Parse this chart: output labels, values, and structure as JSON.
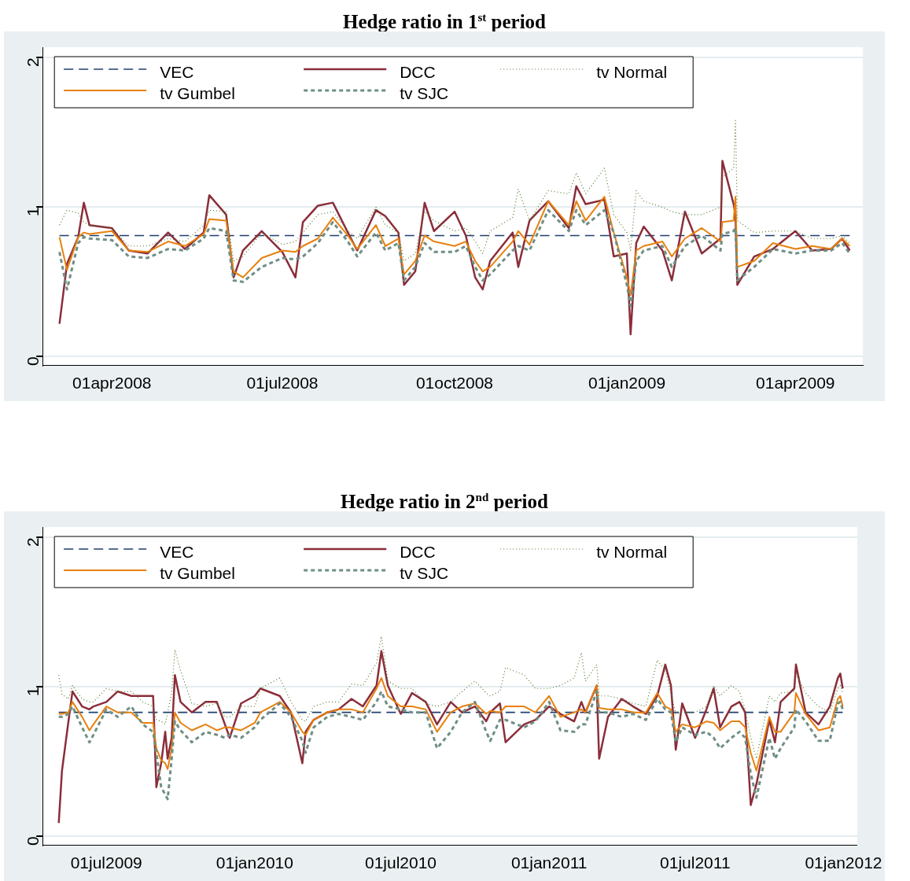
{
  "chart_data": [
    {
      "type": "line",
      "title": "Hedge ratio in 1$^{st}$ period",
      "legend": "top left",
      "grid": "y",
      "x": [
        "2008-03-04",
        "2008-03-08",
        "2008-03-14",
        "2008-03-17",
        "2008-03-20",
        "2008-04-01",
        "2008-04-10",
        "2008-04-20",
        "2008-05-01",
        "2008-05-10",
        "2008-05-20",
        "2008-05-23",
        "2008-06-01",
        "2008-06-05",
        "2008-06-10",
        "2008-06-20",
        "2008-07-01",
        "2008-07-08",
        "2008-07-12",
        "2008-07-20",
        "2008-07-28",
        "2008-08-05",
        "2008-08-10",
        "2008-08-20",
        "2008-08-25",
        "2008-09-01",
        "2008-09-04",
        "2008-09-10",
        "2008-09-15",
        "2008-09-20",
        "2008-10-01",
        "2008-10-07",
        "2008-10-12",
        "2008-10-16",
        "2008-10-20",
        "2008-11-01",
        "2008-11-04",
        "2008-11-10",
        "2008-11-20",
        "2008-12-01",
        "2008-12-05",
        "2008-12-10",
        "2008-12-20",
        "2008-12-25",
        "2009-01-01",
        "2009-01-03",
        "2009-01-06",
        "2009-01-10",
        "2009-01-20",
        "2009-01-25",
        "2009-02-01",
        "2009-02-10",
        "2009-02-20",
        "2009-02-21",
        "2009-02-27",
        "2009-02-28",
        "2009-03-01",
        "2009-03-10",
        "2009-03-20",
        "2009-04-01",
        "2009-04-10",
        "2009-04-20",
        "2009-04-26",
        "2009-04-30"
      ],
      "series": [
        {
          "name": "VEC",
          "color": "#1f3f6e",
          "line_style": "dashed",
          "x": [
            "2008-03-04",
            "2009-04-30"
          ],
          "values": [
            0.81,
            0.81
          ]
        },
        {
          "name": "DCC",
          "color": "#8b2e3a",
          "line_style": "solid",
          "values": [
            0.22,
            0.62,
            0.8,
            1.03,
            0.88,
            0.86,
            0.71,
            0.69,
            0.83,
            0.72,
            0.83,
            1.08,
            0.95,
            0.53,
            0.71,
            0.84,
            0.7,
            0.53,
            0.9,
            1.01,
            1.03,
            0.83,
            0.71,
            0.98,
            0.94,
            0.83,
            0.48,
            0.57,
            1.03,
            0.84,
            0.97,
            0.81,
            0.53,
            0.45,
            0.64,
            0.83,
            0.6,
            0.91,
            1.04,
            0.86,
            1.14,
            1.02,
            1.05,
            0.67,
            0.69,
            0.15,
            0.76,
            0.87,
            0.71,
            0.51,
            0.97,
            0.69,
            0.79,
            1.31,
            1.02,
            0.95,
            0.48,
            0.67,
            0.72,
            0.84,
            0.71,
            0.72,
            0.79,
            0.71
          ]
        },
        {
          "name": "tv Normal",
          "color": "#4f7a28",
          "line_style": "dotted",
          "values": [
            0.88,
            0.98,
            0.96,
            0.9,
            0.88,
            0.86,
            0.74,
            0.74,
            0.79,
            0.77,
            0.88,
            0.98,
            0.97,
            0.64,
            0.67,
            0.83,
            0.75,
            0.77,
            0.83,
            0.95,
            0.97,
            0.84,
            0.79,
            1.0,
            0.88,
            0.83,
            0.64,
            0.69,
            0.97,
            0.91,
            0.84,
            0.86,
            0.77,
            0.69,
            0.84,
            0.93,
            1.12,
            0.91,
            1.11,
            1.09,
            1.23,
            1.09,
            1.26,
            0.95,
            0.83,
            0.71,
            1.11,
            1.04,
            1.0,
            0.97,
            0.95,
            0.95,
            1.0,
            1.2,
            1.26,
            1.58,
            0.91,
            0.83,
            0.84,
            0.84,
            0.79,
            0.79,
            0.81,
            0.76
          ]
        },
        {
          "name": "tv Gumbel",
          "color": "#e8800e",
          "line_style": "solid",
          "values": [
            0.8,
            0.58,
            0.8,
            0.83,
            0.82,
            0.84,
            0.71,
            0.7,
            0.77,
            0.74,
            0.82,
            0.92,
            0.91,
            0.57,
            0.53,
            0.66,
            0.71,
            0.7,
            0.74,
            0.79,
            0.93,
            0.81,
            0.72,
            0.88,
            0.74,
            0.79,
            0.55,
            0.64,
            0.81,
            0.77,
            0.74,
            0.77,
            0.64,
            0.57,
            0.6,
            0.77,
            0.84,
            0.75,
            1.04,
            0.88,
            1.04,
            0.91,
            1.07,
            0.83,
            0.53,
            0.41,
            0.71,
            0.74,
            0.77,
            0.67,
            0.79,
            0.86,
            0.77,
            0.9,
            0.91,
            1.07,
            0.6,
            0.64,
            0.76,
            0.72,
            0.74,
            0.72,
            0.79,
            0.74
          ]
        },
        {
          "name": "tv SJC",
          "color": "#6f8f84",
          "line_style": "dashed",
          "values": [
            0.7,
            0.45,
            0.76,
            0.8,
            0.79,
            0.78,
            0.67,
            0.66,
            0.72,
            0.71,
            0.79,
            0.86,
            0.84,
            0.51,
            0.5,
            0.6,
            0.66,
            0.65,
            0.67,
            0.76,
            0.9,
            0.77,
            0.67,
            0.83,
            0.71,
            0.76,
            0.51,
            0.6,
            0.76,
            0.7,
            0.7,
            0.74,
            0.6,
            0.51,
            0.55,
            0.71,
            0.74,
            0.71,
            0.98,
            0.84,
            0.98,
            0.88,
            0.98,
            0.83,
            0.48,
            0.34,
            0.64,
            0.71,
            0.74,
            0.6,
            0.74,
            0.81,
            0.71,
            0.82,
            0.84,
            0.86,
            0.51,
            0.6,
            0.72,
            0.69,
            0.71,
            0.71,
            0.76,
            0.69
          ]
        }
      ],
      "xlim": [
        "2008-02-24",
        "2009-05-07"
      ],
      "xticks": [
        {
          "value": "2008-04-01",
          "label": "01apr2008"
        },
        {
          "value": "2008-07-01",
          "label": "01jul2008"
        },
        {
          "value": "2008-10-01",
          "label": "01oct2008"
        },
        {
          "value": "2009-01-01",
          "label": "01jan2009"
        },
        {
          "value": "2009-04-01",
          "label": "01apr2009"
        }
      ],
      "ylim": [
        -0.06,
        2.07
      ],
      "yticks": [
        0,
        1,
        2
      ]
    },
    {
      "type": "line",
      "title": "Hedge ratio in 2$^{nd}$ period",
      "legend": "top left",
      "grid": "y",
      "x": [
        "2009-05-03",
        "2009-05-07",
        "2009-05-15",
        "2009-05-20",
        "2009-06-01",
        "2009-06-10",
        "2009-06-15",
        "2009-07-01",
        "2009-07-15",
        "2009-08-01",
        "2009-08-15",
        "2009-08-28",
        "2009-09-01",
        "2009-09-07",
        "2009-09-12",
        "2009-09-15",
        "2009-09-20",
        "2009-09-24",
        "2009-10-01",
        "2009-10-15",
        "2009-11-01",
        "2009-11-15",
        "2009-11-25",
        "2009-12-01",
        "2009-12-15",
        "2010-01-01",
        "2010-01-08",
        "2010-02-01",
        "2010-02-15",
        "2010-03-01",
        "2010-03-05",
        "2010-03-15",
        "2010-04-01",
        "2010-04-15",
        "2010-05-01",
        "2010-05-15",
        "2010-06-01",
        "2010-06-07",
        "2010-06-15",
        "2010-07-01",
        "2010-07-15",
        "2010-08-01",
        "2010-08-15",
        "2010-09-01",
        "2010-09-15",
        "2010-10-01",
        "2010-10-15",
        "2010-10-20",
        "2010-11-01",
        "2010-11-08",
        "2010-12-01",
        "2010-12-15",
        "2011-01-01",
        "2011-01-15",
        "2011-02-01",
        "2011-02-10",
        "2011-02-15",
        "2011-03-01",
        "2011-03-04",
        "2011-03-15",
        "2011-04-01",
        "2011-04-15",
        "2011-05-01",
        "2011-05-15",
        "2011-05-25",
        "2011-06-01",
        "2011-06-07",
        "2011-06-15",
        "2011-07-01",
        "2011-07-15",
        "2011-07-24",
        "2011-08-01",
        "2011-08-15",
        "2011-08-25",
        "2011-09-01",
        "2011-09-08",
        "2011-09-15",
        "2011-10-01",
        "2011-10-08",
        "2011-10-15",
        "2011-11-01",
        "2011-11-03",
        "2011-11-15",
        "2011-12-01",
        "2011-12-15",
        "2011-12-25",
        "2011-12-28",
        "2011-12-31"
      ],
      "series": [
        {
          "name": "VEC",
          "color": "#1f3f6e",
          "line_style": "dashed",
          "x": [
            "2009-05-03",
            "2011-12-31"
          ],
          "values": [
            0.83,
            0.83
          ]
        },
        {
          "name": "DCC",
          "color": "#8b2e3a",
          "line_style": "solid",
          "values": [
            0.09,
            0.44,
            0.77,
            0.97,
            0.87,
            0.85,
            0.87,
            0.9,
            0.97,
            0.94,
            0.94,
            0.94,
            0.33,
            0.49,
            0.7,
            0.52,
            0.66,
            1.08,
            0.9,
            0.83,
            0.9,
            0.9,
            0.75,
            0.66,
            0.89,
            0.94,
            0.99,
            0.94,
            0.83,
            0.49,
            0.7,
            0.78,
            0.83,
            0.85,
            0.92,
            0.87,
            1.01,
            1.24,
            1.01,
            0.82,
            0.96,
            0.9,
            0.75,
            0.9,
            0.83,
            0.87,
            0.77,
            0.83,
            0.89,
            0.63,
            0.75,
            0.78,
            0.87,
            0.82,
            0.77,
            0.9,
            0.83,
            1.01,
            0.52,
            0.8,
            0.92,
            0.87,
            0.82,
            0.94,
            1.15,
            1.01,
            0.58,
            0.89,
            0.66,
            0.85,
            0.99,
            0.73,
            0.87,
            0.9,
            0.83,
            0.21,
            0.35,
            0.78,
            0.63,
            0.9,
            0.99,
            1.15,
            0.83,
            0.75,
            0.87,
            1.06,
            1.09,
            0.99
          ]
        },
        {
          "name": "tv Normal",
          "color": "#4f7a28",
          "line_style": "dotted",
          "values": [
            1.08,
            0.95,
            0.92,
            1.01,
            0.92,
            0.9,
            0.9,
            0.99,
            0.97,
            0.97,
            0.9,
            0.87,
            0.78,
            0.77,
            0.75,
            0.83,
            0.96,
            1.25,
            1.11,
            0.89,
            0.87,
            0.89,
            0.8,
            0.8,
            0.87,
            0.87,
            0.99,
            1.06,
            0.9,
            0.78,
            0.77,
            0.87,
            0.9,
            0.9,
            1.02,
            1.01,
            1.16,
            1.34,
            1.04,
            0.99,
            0.99,
            0.89,
            0.87,
            0.9,
            0.97,
            1.04,
            0.96,
            0.94,
            0.97,
            1.13,
            1.08,
            0.99,
            0.99,
            1.01,
            1.06,
            1.23,
            1.04,
            1.15,
            0.94,
            0.94,
            0.92,
            0.89,
            0.87,
            1.18,
            1.11,
            0.96,
            0.82,
            0.83,
            0.83,
            0.87,
            1.01,
            0.94,
            1.01,
            0.97,
            0.85,
            0.66,
            0.52,
            0.94,
            0.9,
            0.96,
            0.97,
            1.09,
            0.96,
            0.87,
            0.83,
            0.99,
            1.01,
            0.96
          ]
        },
        {
          "name": "tv Gumbel",
          "color": "#e8800e",
          "line_style": "solid",
          "values": [
            0.82,
            0.82,
            0.83,
            0.9,
            0.8,
            0.71,
            0.75,
            0.87,
            0.83,
            0.83,
            0.76,
            0.76,
            0.59,
            0.51,
            0.49,
            0.45,
            0.59,
            0.83,
            0.76,
            0.71,
            0.75,
            0.71,
            0.73,
            0.73,
            0.71,
            0.76,
            0.83,
            0.9,
            0.83,
            0.7,
            0.68,
            0.78,
            0.83,
            0.85,
            0.85,
            0.83,
            0.99,
            1.06,
            0.94,
            0.87,
            0.87,
            0.85,
            0.7,
            0.83,
            0.87,
            0.89,
            0.82,
            0.84,
            0.83,
            0.87,
            0.87,
            0.83,
            0.94,
            0.8,
            0.83,
            0.85,
            0.83,
            1.01,
            0.86,
            0.85,
            0.85,
            0.83,
            0.83,
            0.96,
            0.87,
            0.85,
            0.7,
            0.75,
            0.73,
            0.77,
            0.76,
            0.71,
            0.77,
            0.77,
            0.73,
            0.56,
            0.44,
            0.8,
            0.7,
            0.7,
            0.83,
            0.96,
            0.82,
            0.71,
            0.73,
            0.92,
            0.94,
            0.87
          ]
        },
        {
          "name": "tv SJC",
          "color": "#6f8f84",
          "line_style": "dashed",
          "values": [
            0.8,
            0.8,
            0.82,
            0.87,
            0.73,
            0.63,
            0.68,
            0.85,
            0.8,
            0.87,
            0.75,
            0.7,
            0.56,
            0.33,
            0.28,
            0.25,
            0.52,
            0.77,
            0.71,
            0.63,
            0.7,
            0.68,
            0.66,
            0.68,
            0.66,
            0.73,
            0.78,
            0.89,
            0.8,
            0.64,
            0.56,
            0.73,
            0.8,
            0.82,
            0.8,
            0.78,
            0.9,
            0.97,
            0.87,
            0.85,
            0.83,
            0.83,
            0.59,
            0.7,
            0.83,
            0.9,
            0.7,
            0.64,
            0.78,
            0.78,
            0.73,
            0.77,
            0.9,
            0.71,
            0.7,
            0.75,
            0.75,
            0.97,
            0.83,
            0.83,
            0.8,
            0.82,
            0.78,
            0.92,
            0.85,
            0.83,
            0.63,
            0.73,
            0.68,
            0.7,
            0.66,
            0.59,
            0.66,
            0.7,
            0.66,
            0.42,
            0.26,
            0.66,
            0.52,
            0.59,
            0.73,
            0.85,
            0.77,
            0.64,
            0.64,
            0.89,
            0.9,
            0.85
          ]
        }
      ],
      "xlim": [
        "2009-04-13",
        "2012-01-18"
      ],
      "xticks": [
        {
          "value": "2009-07-01",
          "label": "01jul2009"
        },
        {
          "value": "2010-01-01",
          "label": "01jan2010"
        },
        {
          "value": "2010-07-01",
          "label": "01jul2010"
        },
        {
          "value": "2011-01-01",
          "label": "01jan2011"
        },
        {
          "value": "2011-07-01",
          "label": "01jul2011"
        },
        {
          "value": "2012-01-01",
          "label": "01jan2012"
        }
      ],
      "ylim": [
        -0.06,
        2.07
      ],
      "yticks": [
        0,
        1,
        2
      ]
    }
  ]
}
